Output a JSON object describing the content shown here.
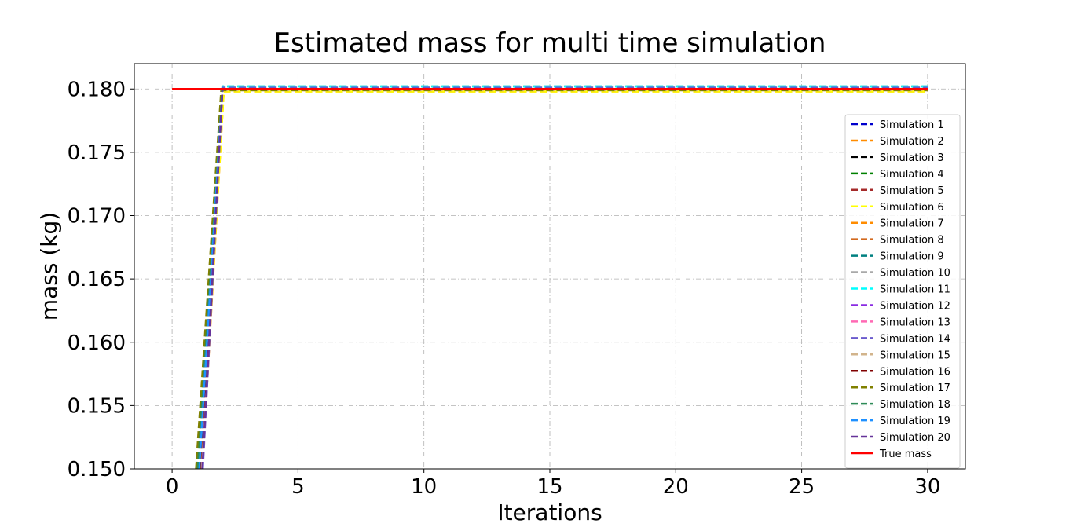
{
  "chart_data": {
    "type": "line",
    "title": "Estimated mass for multi time simulation",
    "xlabel": "Iterations",
    "ylabel": "mass (kg)",
    "xlim": [
      -1.5,
      31.5
    ],
    "ylim": [
      0.15,
      0.182
    ],
    "xticks": [
      0,
      5,
      10,
      15,
      20,
      25,
      30
    ],
    "xtick_labels": [
      "0",
      "5",
      "10",
      "15",
      "20",
      "25",
      "30"
    ],
    "yticks": [
      0.15,
      0.155,
      0.16,
      0.165,
      0.17,
      0.175,
      0.18
    ],
    "ytick_labels": [
      "0.150",
      "0.155",
      "0.160",
      "0.165",
      "0.170",
      "0.175",
      "0.180"
    ],
    "grid": true,
    "legend_position": "right",
    "x": [
      0,
      1,
      2,
      3,
      4,
      5,
      6,
      7,
      8,
      9,
      10,
      11,
      12,
      13,
      14,
      15,
      16,
      17,
      18,
      19,
      20,
      21,
      22,
      23,
      24,
      25,
      26,
      27,
      28,
      29,
      30
    ],
    "series": [
      {
        "name": "Simulation 1",
        "color": "#0000cc",
        "dashed": true,
        "points": [
          [
            1.15,
            0.15
          ],
          [
            2.0,
            0.18
          ],
          [
            30,
            0.18
          ]
        ]
      },
      {
        "name": "Simulation 2",
        "color": "#ff8c00",
        "dashed": true,
        "points": [
          [
            1.2,
            0.15
          ],
          [
            2.05,
            0.1798
          ],
          [
            30,
            0.1798
          ]
        ]
      },
      {
        "name": "Simulation 3",
        "color": "#000000",
        "dashed": true,
        "points": [
          [
            1.1,
            0.15
          ],
          [
            2.0,
            0.18
          ],
          [
            30,
            0.18
          ]
        ]
      },
      {
        "name": "Simulation 4",
        "color": "#008000",
        "dashed": true,
        "points": [
          [
            1.0,
            0.15
          ],
          [
            2.0,
            0.1801
          ],
          [
            30,
            0.1801
          ]
        ]
      },
      {
        "name": "Simulation 5",
        "color": "#a52a2a",
        "dashed": true,
        "points": [
          [
            1.12,
            0.15
          ],
          [
            2.0,
            0.18
          ],
          [
            30,
            0.18
          ]
        ]
      },
      {
        "name": "Simulation 6",
        "color": "#ffff00",
        "dashed": true,
        "points": [
          [
            1.18,
            0.15
          ],
          [
            2.05,
            0.1798
          ],
          [
            30,
            0.1798
          ]
        ]
      },
      {
        "name": "Simulation 7",
        "color": "#ff8c00",
        "dashed": true,
        "points": [
          [
            1.08,
            0.15
          ],
          [
            2.0,
            0.1799
          ],
          [
            30,
            0.1799
          ]
        ]
      },
      {
        "name": "Simulation 8",
        "color": "#d2691e",
        "dashed": true,
        "points": [
          [
            1.05,
            0.15
          ],
          [
            2.0,
            0.18
          ],
          [
            30,
            0.18
          ]
        ]
      },
      {
        "name": "Simulation 9",
        "color": "#008080",
        "dashed": true,
        "points": [
          [
            1.0,
            0.15
          ],
          [
            2.0,
            0.1802
          ],
          [
            30,
            0.1802
          ]
        ]
      },
      {
        "name": "Simulation 10",
        "color": "#a9a9a9",
        "dashed": true,
        "points": [
          [
            1.1,
            0.15
          ],
          [
            2.0,
            0.1801
          ],
          [
            30,
            0.1801
          ]
        ]
      },
      {
        "name": "Simulation 11",
        "color": "#00ffff",
        "dashed": true,
        "points": [
          [
            1.05,
            0.15
          ],
          [
            2.0,
            0.1802
          ],
          [
            30,
            0.1802
          ]
        ]
      },
      {
        "name": "Simulation 12",
        "color": "#8a2be2",
        "dashed": true,
        "points": [
          [
            1.14,
            0.15
          ],
          [
            2.0,
            0.18
          ],
          [
            30,
            0.18
          ]
        ]
      },
      {
        "name": "Simulation 13",
        "color": "#ff69b4",
        "dashed": true,
        "points": [
          [
            1.16,
            0.15
          ],
          [
            2.0,
            0.18
          ],
          [
            30,
            0.18
          ]
        ]
      },
      {
        "name": "Simulation 14",
        "color": "#6a5acd",
        "dashed": true,
        "points": [
          [
            1.22,
            0.15
          ],
          [
            2.0,
            0.1801
          ],
          [
            30,
            0.1801
          ]
        ]
      },
      {
        "name": "Simulation 15",
        "color": "#d2b48c",
        "dashed": true,
        "points": [
          [
            1.12,
            0.15
          ],
          [
            2.0,
            0.1799
          ],
          [
            30,
            0.1799
          ]
        ]
      },
      {
        "name": "Simulation 16",
        "color": "#800000",
        "dashed": true,
        "points": [
          [
            1.1,
            0.15
          ],
          [
            2.0,
            0.18
          ],
          [
            30,
            0.18
          ]
        ]
      },
      {
        "name": "Simulation 17",
        "color": "#808000",
        "dashed": true,
        "points": [
          [
            0.95,
            0.15
          ],
          [
            1.95,
            0.1799
          ],
          [
            30,
            0.1799
          ]
        ]
      },
      {
        "name": "Simulation 18",
        "color": "#2e8b57",
        "dashed": true,
        "points": [
          [
            1.02,
            0.15
          ],
          [
            2.0,
            0.18
          ],
          [
            30,
            0.18
          ]
        ]
      },
      {
        "name": "Simulation 19",
        "color": "#1e90ff",
        "dashed": true,
        "points": [
          [
            1.08,
            0.15
          ],
          [
            2.0,
            0.18
          ],
          [
            30,
            0.18
          ]
        ]
      },
      {
        "name": "Simulation 20",
        "color": "#663399",
        "dashed": true,
        "points": [
          [
            1.2,
            0.15
          ],
          [
            2.0,
            0.18
          ],
          [
            30,
            0.18
          ]
        ]
      },
      {
        "name": "True mass",
        "color": "#ff0000",
        "dashed": false,
        "points": [
          [
            0,
            0.18
          ],
          [
            30,
            0.18
          ]
        ]
      }
    ]
  }
}
